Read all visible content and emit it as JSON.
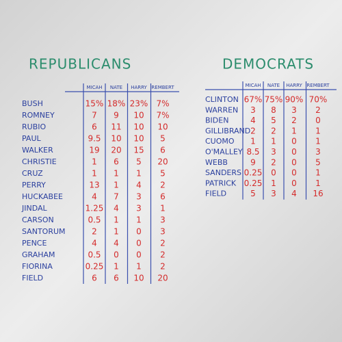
{
  "republicans": {
    "title": "REPUBLICANS",
    "columns": [
      "MICAH",
      "NATE",
      "HARRY",
      "REMBERT"
    ],
    "rows": [
      {
        "name": "BUSH",
        "cells": [
          "15%",
          "18%",
          "23%",
          "7%"
        ]
      },
      {
        "name": "ROMNEY",
        "cells": [
          "7",
          "9",
          "10",
          "7%"
        ]
      },
      {
        "name": "RUBIO",
        "cells": [
          "6",
          "11",
          "10",
          "10"
        ]
      },
      {
        "name": "PAUL",
        "cells": [
          "9.5",
          "10",
          "10",
          "5"
        ]
      },
      {
        "name": "WALKER",
        "cells": [
          "19",
          "20",
          "15",
          "6"
        ]
      },
      {
        "name": "CHRISTIE",
        "cells": [
          "1",
          "6",
          "5",
          "20"
        ]
      },
      {
        "name": "CRUZ",
        "cells": [
          "1",
          "1",
          "1",
          "5"
        ]
      },
      {
        "name": "PERRY",
        "cells": [
          "13",
          "1",
          "4",
          "2"
        ]
      },
      {
        "name": "HUCKABEE",
        "cells": [
          "4",
          "7",
          "3",
          "6"
        ]
      },
      {
        "name": "JINDAL",
        "cells": [
          "1.25",
          "4",
          "3",
          "1"
        ]
      },
      {
        "name": "CARSON",
        "cells": [
          "0.5",
          "1",
          "1",
          "3"
        ]
      },
      {
        "name": "SANTORUM",
        "cells": [
          "2",
          "1",
          "0",
          "3"
        ]
      },
      {
        "name": "PENCE",
        "cells": [
          "4",
          "4",
          "0",
          "2"
        ]
      },
      {
        "name": "GRAHAM",
        "cells": [
          "0.5",
          "0",
          "0",
          "2"
        ]
      },
      {
        "name": "FIORINA",
        "cells": [
          "0.25",
          "1",
          "1",
          "2"
        ]
      },
      {
        "name": "FIELD",
        "cells": [
          "6",
          "6",
          "10",
          "20"
        ]
      }
    ]
  },
  "democrats": {
    "title": "DEMOCRATS",
    "columns": [
      "MICAH",
      "NATE",
      "HARRY",
      "REMBERT"
    ],
    "rows": [
      {
        "name": "CLINTON",
        "cells": [
          "67%",
          "75%",
          "90%",
          "70%"
        ]
      },
      {
        "name": "WARREN",
        "cells": [
          "3",
          "8",
          "3",
          "2"
        ]
      },
      {
        "name": "BIDEN",
        "cells": [
          "4",
          "5",
          "2",
          "0"
        ]
      },
      {
        "name": "GILLIBRAND",
        "cells": [
          "2",
          "2",
          "1",
          "1"
        ]
      },
      {
        "name": "CUOMO",
        "cells": [
          "1",
          "1",
          "0",
          "1"
        ]
      },
      {
        "name": "O'MALLEY",
        "cells": [
          "8.5",
          "3",
          "0",
          "3"
        ]
      },
      {
        "name": "WEBB",
        "cells": [
          "9",
          "2",
          "0",
          "5"
        ]
      },
      {
        "name": "SANDERS",
        "cells": [
          "0.25",
          "0",
          "0",
          "1"
        ]
      },
      {
        "name": "PATRICK",
        "cells": [
          "0.25",
          "1",
          "0",
          "1"
        ]
      },
      {
        "name": "FIELD",
        "cells": [
          "5",
          "3",
          "4",
          "16"
        ]
      }
    ]
  }
}
